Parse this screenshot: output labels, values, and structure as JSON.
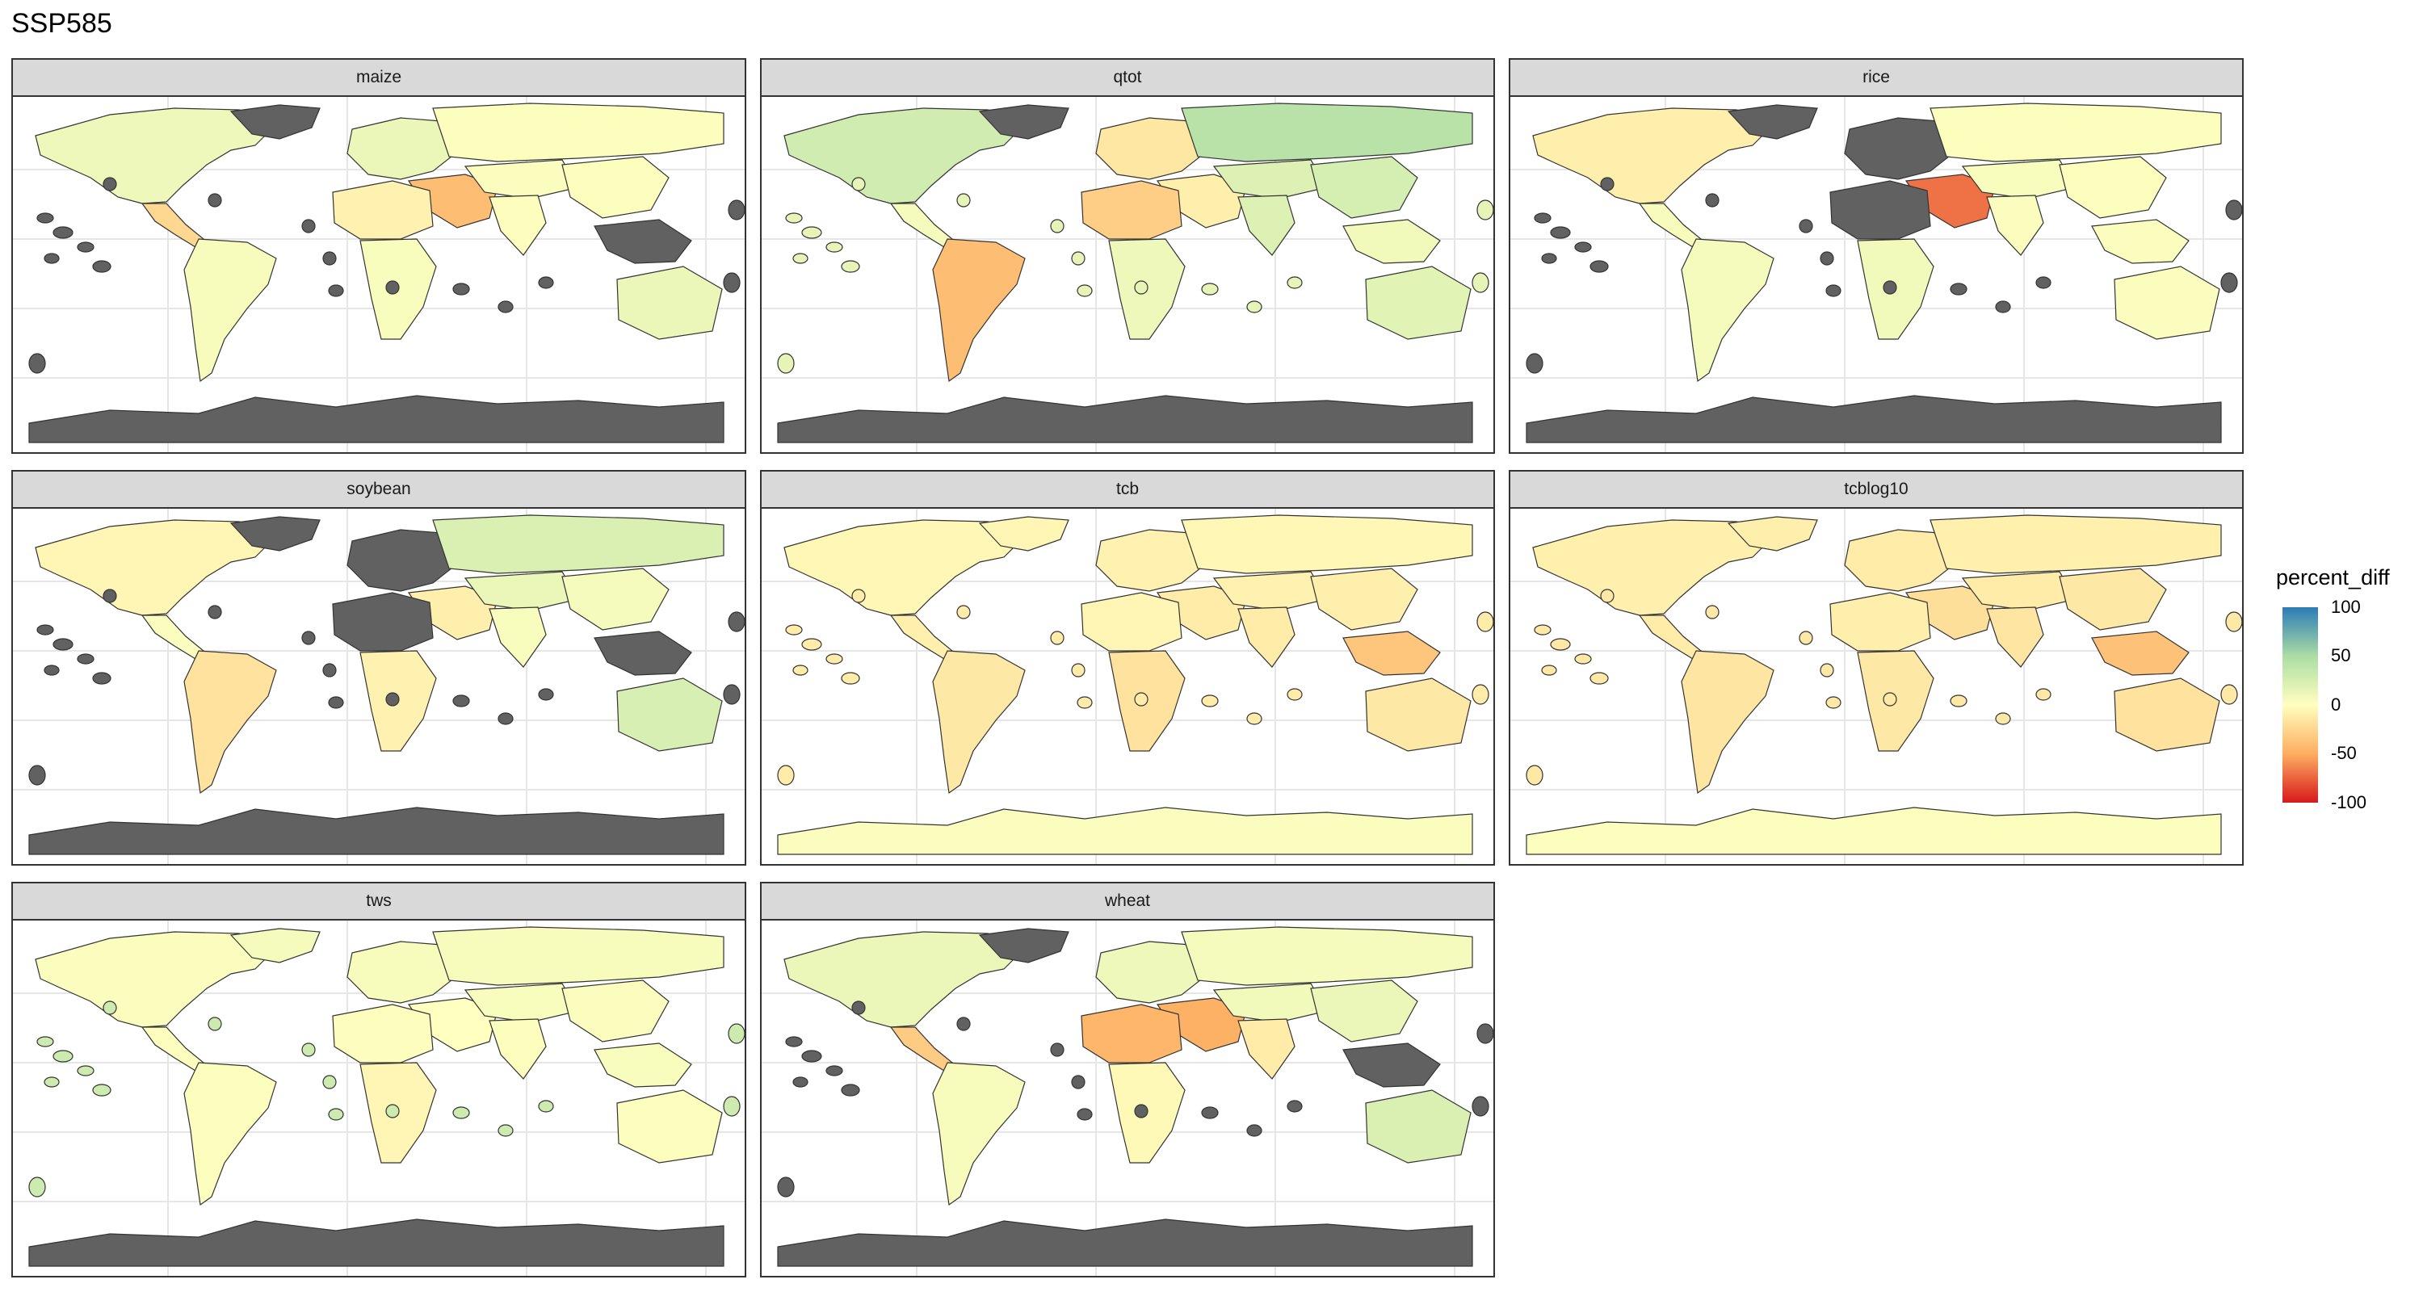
{
  "title": "SSP585",
  "legend": {
    "title": "percent_diff",
    "ticks": [
      {
        "label": "100",
        "value": 100
      },
      {
        "label": "50",
        "value": 50
      },
      {
        "label": "0",
        "value": 0
      },
      {
        "label": "-50",
        "value": -50
      },
      {
        "label": "-100",
        "value": -100
      }
    ],
    "scale_min": -100,
    "scale_max": 100,
    "gradient": [
      "#2c7bb6",
      "#abdda4",
      "#ffffbf",
      "#fdae61",
      "#d7191c"
    ],
    "missing_color": "#616161"
  },
  "facets": [
    {
      "label": "maize",
      "regions": {
        "north_america": 10,
        "greenland": null,
        "south_america": 5,
        "europe": 12,
        "russia": 2,
        "middle_east": -40,
        "africa_north": -8,
        "africa_south": 4,
        "central_asia": 3,
        "south_asia": 1,
        "east_asia": 2,
        "southeast_asia": null,
        "australia": 12,
        "central_america": -25,
        "antarctica": null,
        "islands": null
      }
    },
    {
      "label": "qtot",
      "regions": {
        "north_america": 28,
        "greenland": null,
        "south_america": -40,
        "europe": -15,
        "russia": 42,
        "middle_east": -10,
        "africa_north": -30,
        "africa_south": 10,
        "central_asia": 20,
        "south_asia": 20,
        "east_asia": 25,
        "southeast_asia": 8,
        "australia": 18,
        "central_america": 6,
        "antarctica": null,
        "islands": 15
      }
    },
    {
      "label": "rice",
      "regions": {
        "north_america": -10,
        "greenland": null,
        "south_america": 6,
        "europe": null,
        "russia": 2,
        "middle_east": -70,
        "africa_north": null,
        "africa_south": 8,
        "central_asia": 4,
        "south_asia": 3,
        "east_asia": 2,
        "southeast_asia": 3,
        "australia": 3,
        "central_america": 5,
        "antarctica": null,
        "islands": null
      }
    },
    {
      "label": "soybean",
      "regions": {
        "north_america": -6,
        "greenland": null,
        "south_america": -18,
        "europe": null,
        "russia": 22,
        "middle_east": -10,
        "africa_north": null,
        "africa_south": -8,
        "central_asia": 12,
        "south_asia": 4,
        "east_asia": 6,
        "southeast_asia": null,
        "australia": 24,
        "central_america": 3,
        "antarctica": null,
        "islands": null
      }
    },
    {
      "label": "tcb",
      "regions": {
        "north_america": -5,
        "greenland": -6,
        "south_america": -14,
        "europe": -8,
        "russia": -5,
        "middle_east": -12,
        "africa_north": -6,
        "africa_south": -18,
        "central_asia": -8,
        "south_asia": -12,
        "east_asia": -10,
        "southeast_asia": -35,
        "australia": -14,
        "central_america": -9,
        "antarctica": 3,
        "islands": -12
      }
    },
    {
      "label": "tcblog10",
      "regions": {
        "north_america": -9,
        "greenland": -10,
        "south_america": -16,
        "europe": -12,
        "russia": -9,
        "middle_east": -20,
        "africa_north": -10,
        "africa_south": -14,
        "central_asia": -12,
        "south_asia": -16,
        "east_asia": -14,
        "southeast_asia": -38,
        "australia": -18,
        "central_america": -12,
        "antarctica": 2,
        "islands": -14
      }
    },
    {
      "label": "tws",
      "regions": {
        "north_america": 3,
        "greenland": 6,
        "south_america": 2,
        "europe": 5,
        "russia": 5,
        "middle_east": 0,
        "africa_north": 1,
        "africa_south": -6,
        "central_asia": 4,
        "south_asia": 2,
        "east_asia": 3,
        "southeast_asia": 4,
        "australia": 2,
        "central_america": 1,
        "antarctica": null,
        "islands": 30
      }
    },
    {
      "label": "wheat",
      "regions": {
        "north_america": 12,
        "greenland": null,
        "south_america": 5,
        "europe": 10,
        "russia": 6,
        "middle_east": -48,
        "africa_north": -45,
        "africa_south": -4,
        "central_asia": 8,
        "south_asia": -12,
        "east_asia": 12,
        "southeast_asia": null,
        "australia": 22,
        "central_america": -32,
        "antarctica": null,
        "islands": null
      }
    }
  ]
}
